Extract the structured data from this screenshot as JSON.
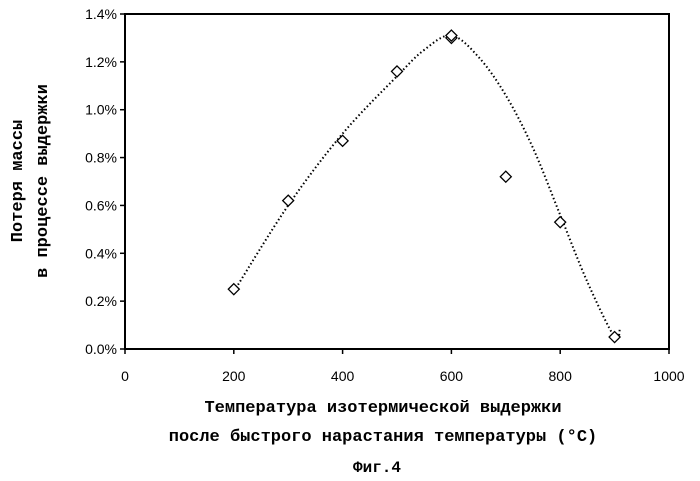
{
  "chart_data": {
    "type": "scatter",
    "x_axis": {
      "label_lines": [
        "Температура изотермической выдержки",
        "после быстрого нарастания температуры (°C)"
      ],
      "lim": [
        0,
        1000
      ],
      "ticks": [
        0,
        200,
        400,
        600,
        800,
        1000
      ],
      "tick_labels": [
        "0",
        "200",
        "400",
        "600",
        "800",
        "1000"
      ]
    },
    "y_axis": {
      "label_lines": [
        "Потеря массы",
        "в процессе выдержки"
      ],
      "lim": [
        0,
        1.4
      ],
      "ticks": [
        0,
        0.2,
        0.4,
        0.6,
        0.8,
        1.0,
        1.2,
        1.4
      ],
      "tick_labels": [
        "0.0%",
        "0.2%",
        "0.4%",
        "0.6%",
        "0.8%",
        "1.0%",
        "1.2%",
        "1.4%"
      ]
    },
    "series": [
      {
        "marker": "diamond",
        "x": [
          200,
          300,
          400,
          500,
          600,
          600,
          700,
          800,
          900
        ],
        "y": [
          0.25,
          0.62,
          0.87,
          1.16,
          1.3,
          1.31,
          0.72,
          0.53,
          0.05
        ]
      }
    ],
    "trendline": {
      "style": "dotted",
      "x": [
        200,
        300,
        400,
        500,
        550,
        600,
        650,
        700,
        750,
        800,
        850,
        900,
        910
      ],
      "y": [
        0.24,
        0.6,
        0.9,
        1.14,
        1.25,
        1.31,
        1.22,
        1.06,
        0.84,
        0.56,
        0.28,
        0.05,
        0.09
      ]
    },
    "grid": false,
    "legend": "none",
    "figure_label": "Фиг.4"
  }
}
